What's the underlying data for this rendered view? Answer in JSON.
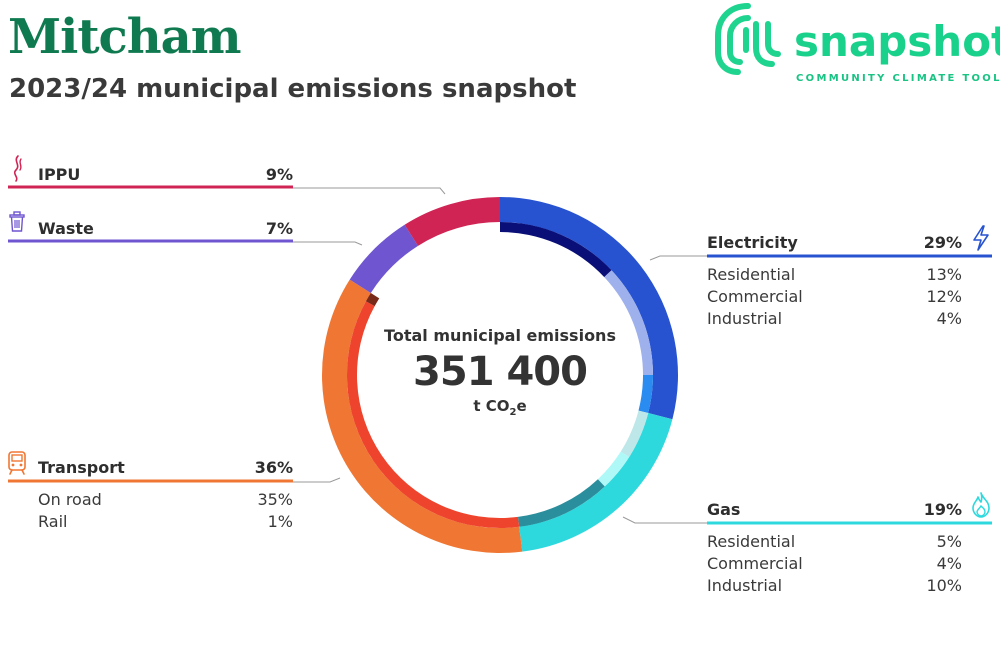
{
  "header": {
    "title": "Mitcham",
    "subtitle": "2023/24 municipal emissions snapshot"
  },
  "logo": {
    "word": "snapshot",
    "tagline": "COMMUNITY CLIMATE TOOL",
    "color": "#19d18a"
  },
  "center": {
    "label": "Total municipal emissions",
    "value": "351 400",
    "unit_main": "t CO",
    "unit_sub": "2",
    "unit_tail": "e"
  },
  "chart_data": {
    "type": "pie",
    "title": "",
    "total": 351400,
    "unit": "t CO2e",
    "categories": [
      {
        "name": "Electricity",
        "pct_label": "29%",
        "value": 29,
        "color": "#2753d0",
        "icon": "lightning-icon",
        "subsectors": [
          {
            "name": "Residential",
            "pct_label": "13%",
            "value": 13,
            "color": "#0a0f78"
          },
          {
            "name": "Commercial",
            "pct_label": "12%",
            "value": 12,
            "color": "#9fb1ec"
          },
          {
            "name": "Industrial",
            "pct_label": "4%",
            "value": 4,
            "color": "#2a8cf0"
          }
        ]
      },
      {
        "name": "Gas",
        "pct_label": "19%",
        "value": 19,
        "color": "#2ed9de",
        "icon": "flame-icon",
        "subsectors": [
          {
            "name": "Residential",
            "pct_label": "5%",
            "value": 5,
            "color": "#bde7e8"
          },
          {
            "name": "Commercial",
            "pct_label": "4%",
            "value": 4,
            "color": "#aef8f8"
          },
          {
            "name": "Industrial",
            "pct_label": "10%",
            "value": 10,
            "color": "#2b8e9c"
          }
        ]
      },
      {
        "name": "Transport",
        "pct_label": "36%",
        "value": 36,
        "color": "#f07733",
        "icon": "train-icon",
        "subsectors": [
          {
            "name": "On road",
            "pct_label": "35%",
            "value": 35,
            "color": "#ee432c"
          },
          {
            "name": "Rail",
            "pct_label": "1%",
            "value": 1,
            "color": "#7a2a18"
          }
        ]
      },
      {
        "name": "Waste",
        "pct_label": "7%",
        "value": 7,
        "color": "#6f55d0",
        "icon": "trash-icon",
        "subsectors": []
      },
      {
        "name": "IPPU",
        "pct_label": "9%",
        "value": 9,
        "color": "#d02454",
        "icon": "smoke-icon",
        "subsectors": []
      }
    ]
  }
}
